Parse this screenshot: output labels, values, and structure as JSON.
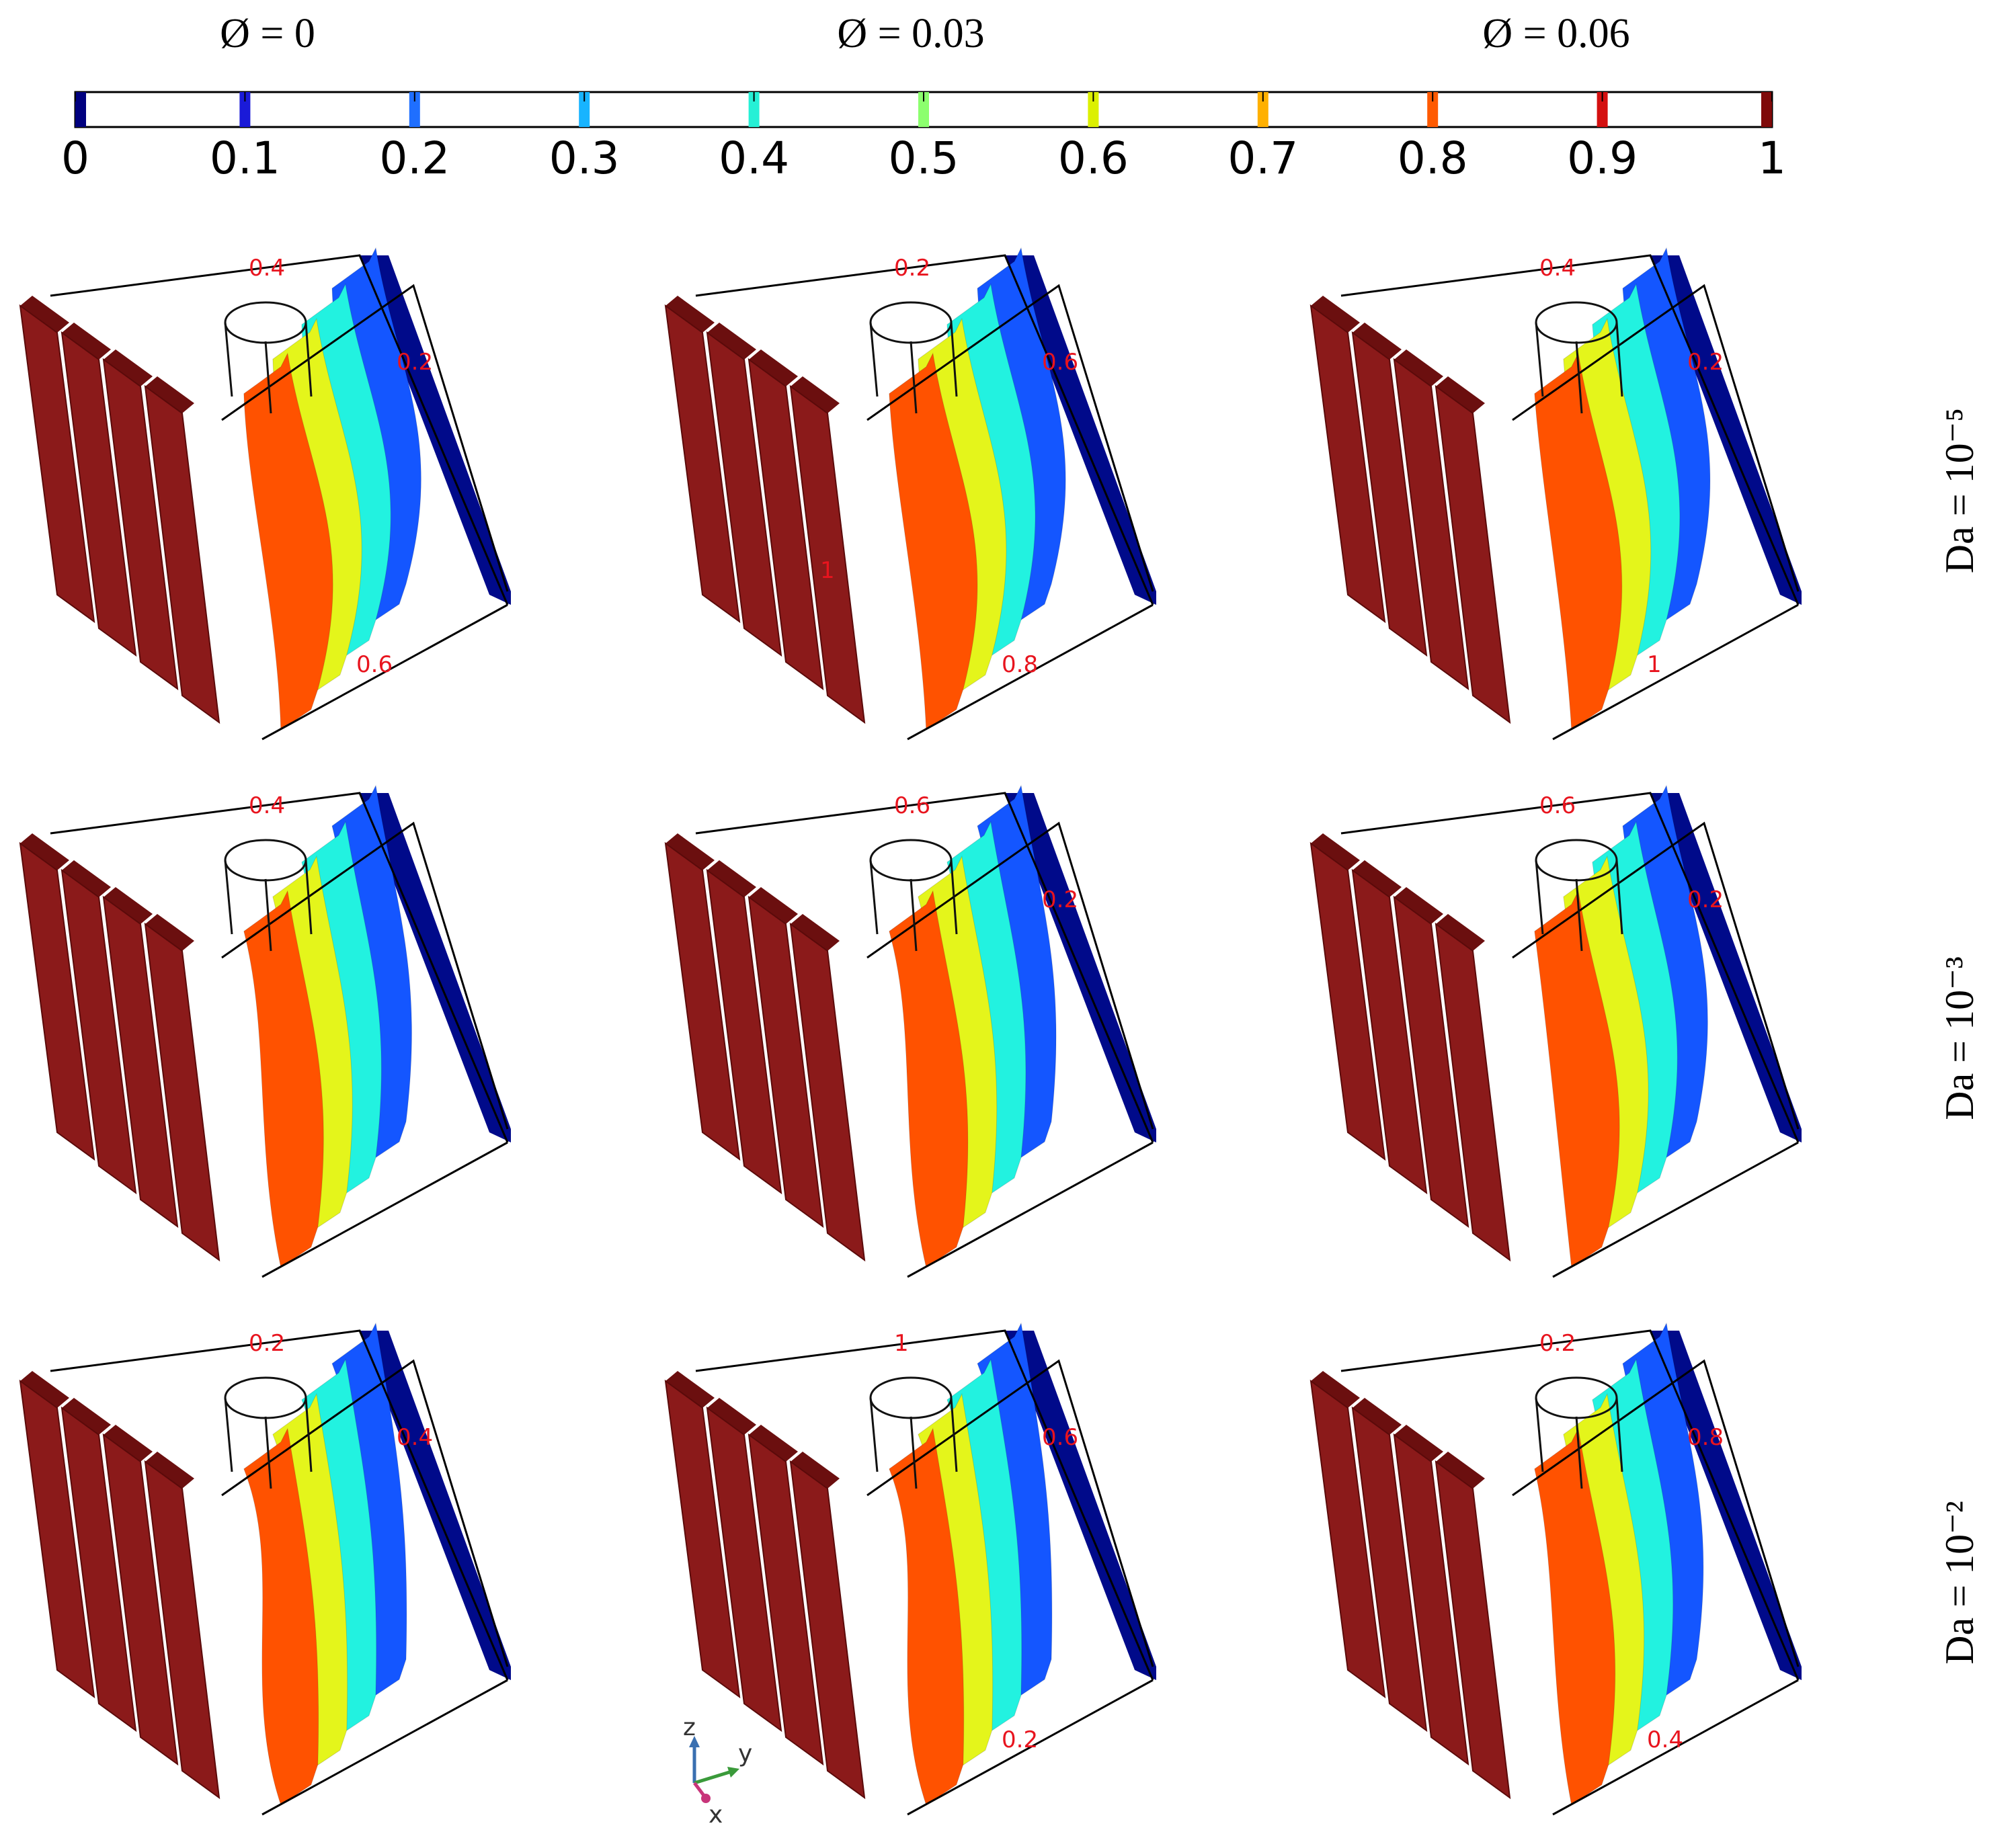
{
  "columns": [
    {
      "label": "Ø = 0"
    },
    {
      "label": "Ø = 0.03"
    },
    {
      "label": "Ø = 0.06"
    }
  ],
  "rows": [
    {
      "label": "Da = 10⁻⁵"
    },
    {
      "label": "Da = 10⁻³"
    },
    {
      "label": "Da = 10⁻²"
    }
  ],
  "colorbar": {
    "ticks": [
      "0",
      "0.1",
      "0.2",
      "0.3",
      "0.4",
      "0.5",
      "0.6",
      "0.7",
      "0.8",
      "0.9",
      "1"
    ],
    "colors": [
      "#00007f",
      "#1a1ad8",
      "#1f6fff",
      "#18b4ff",
      "#26f0d6",
      "#8cff6e",
      "#dcf000",
      "#ffb000",
      "#ff5a00",
      "#d41010",
      "#7f0a0a"
    ]
  },
  "isolevels": [
    {
      "value": 1,
      "color": "#8b1a1a"
    },
    {
      "value": 0.8,
      "color": "#ff5200"
    },
    {
      "value": 0.6,
      "color": "#e4f51b"
    },
    {
      "value": 0.4,
      "color": "#22f2e0"
    },
    {
      "value": 0.2,
      "color": "#1456ff"
    },
    {
      "value": 0,
      "color": "#000a8a"
    }
  ],
  "panels": [
    {
      "row": 0,
      "col": 0,
      "wave": 0.08,
      "labels": [
        "0.4",
        "0.2",
        "0.6"
      ]
    },
    {
      "row": 0,
      "col": 1,
      "wave": 0.12,
      "labels": [
        "0.2",
        "0.6",
        "0.8",
        "1"
      ]
    },
    {
      "row": 0,
      "col": 2,
      "wave": 0.16,
      "labels": [
        "0.4",
        "0.2",
        "1"
      ]
    },
    {
      "row": 1,
      "col": 0,
      "wave": 0.55,
      "labels": [
        "0.4"
      ]
    },
    {
      "row": 1,
      "col": 1,
      "wave": 0.6,
      "labels": [
        "0.6",
        "0.2"
      ]
    },
    {
      "row": 1,
      "col": 2,
      "wave": 0.28,
      "labels": [
        "0.6",
        "0.2"
      ]
    },
    {
      "row": 2,
      "col": 0,
      "wave": 0.85,
      "labels": [
        "0.2",
        "0.4"
      ]
    },
    {
      "row": 2,
      "col": 1,
      "wave": 0.85,
      "labels": [
        "1",
        "0.6",
        "0.2"
      ]
    },
    {
      "row": 2,
      "col": 2,
      "wave": 0.5,
      "labels": [
        "0.2",
        "0.8",
        "0.4"
      ]
    }
  ],
  "axes_triad": {
    "labels": [
      "z",
      "y",
      "x"
    ]
  }
}
